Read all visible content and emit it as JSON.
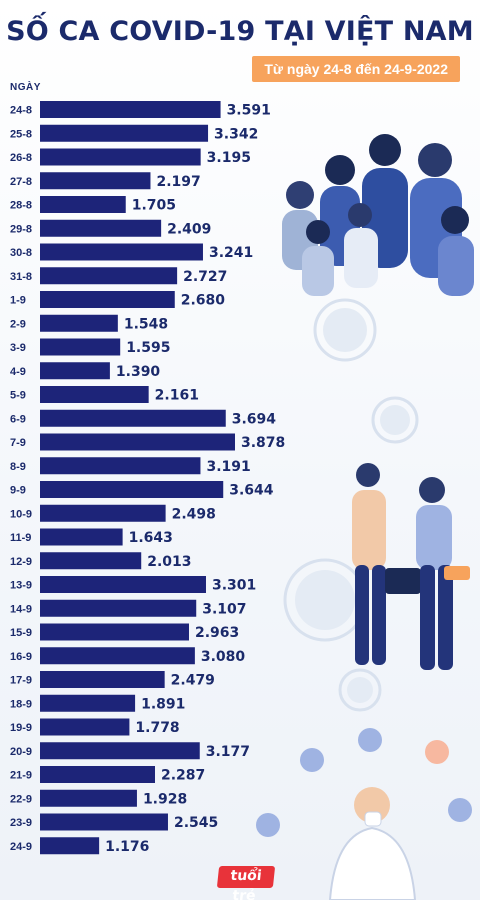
{
  "header": {
    "title": "SỐ CA COVID-19 TẠI VIỆT NAM",
    "subtitle": "Từ ngày 24-8 đến 24-9-2022"
  },
  "footer": {
    "logo_text": "tuổi trẻ"
  },
  "colors": {
    "title": "#1b2a6b",
    "bar": "#1d2479",
    "subtitle_bg": "#f7a35c",
    "logo": "#e8333a"
  },
  "chart_data": {
    "type": "bar",
    "orientation": "horizontal",
    "ylabel": "NGÀY",
    "categories": [
      "24-8",
      "25-8",
      "26-8",
      "27-8",
      "28-8",
      "29-8",
      "30-8",
      "31-8",
      "1-9",
      "2-9",
      "3-9",
      "4-9",
      "5-9",
      "6-9",
      "7-9",
      "8-9",
      "9-9",
      "10-9",
      "11-9",
      "12-9",
      "13-9",
      "14-9",
      "15-9",
      "16-9",
      "17-9",
      "18-9",
      "19-9",
      "20-9",
      "21-9",
      "22-9",
      "23-9",
      "24-9"
    ],
    "values": [
      3591,
      3342,
      3195,
      2197,
      1705,
      2409,
      3241,
      2727,
      2680,
      1548,
      1595,
      1390,
      2161,
      3694,
      3878,
      3191,
      3644,
      2498,
      1643,
      2013,
      3301,
      3107,
      2963,
      3080,
      2479,
      1891,
      1778,
      3177,
      2287,
      1928,
      2545,
      1176
    ],
    "value_labels": [
      "3.591",
      "3.342",
      "3.195",
      "2.197",
      "1.705",
      "2.409",
      "3.241",
      "2.727",
      "2.680",
      "1.548",
      "1.595",
      "1.390",
      "2.161",
      "3.694",
      "3.878",
      "3.191",
      "3.644",
      "2.498",
      "1.643",
      "2.013",
      "3.301",
      "3.107",
      "2.963",
      "3.080",
      "2.479",
      "1.891",
      "1.778",
      "3.177",
      "2.287",
      "1.928",
      "2.545",
      "1.176"
    ],
    "grid": false,
    "legend": "none"
  }
}
